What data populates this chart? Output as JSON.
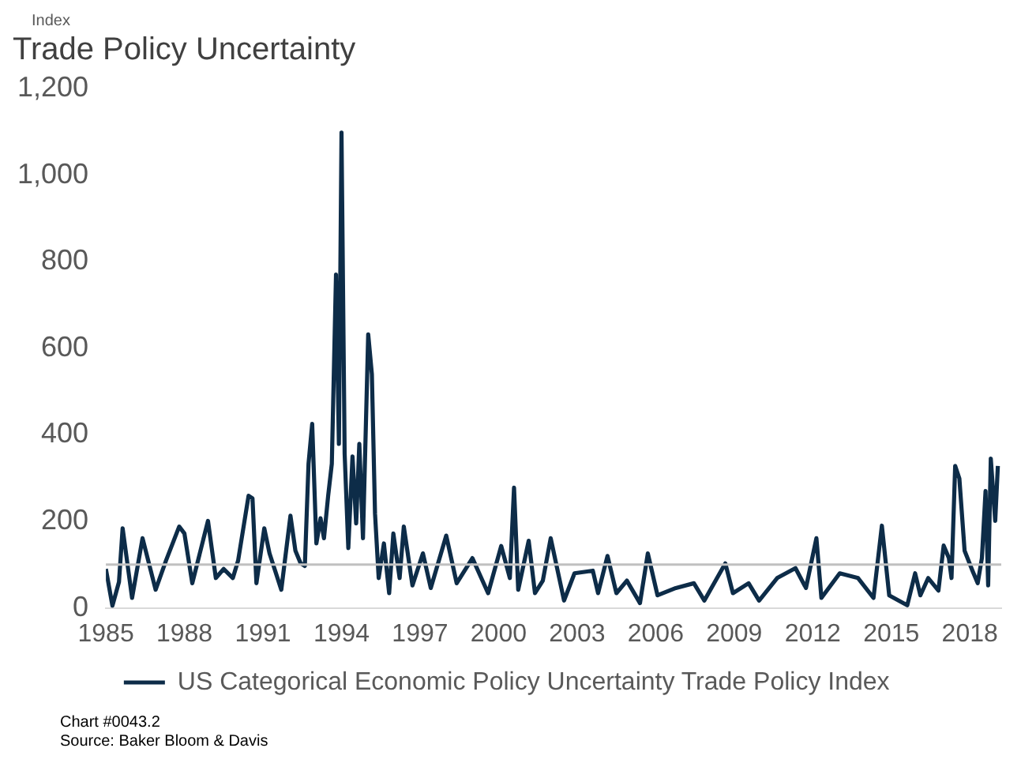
{
  "chart_data": {
    "type": "line",
    "title": "Trade Policy Uncertainty",
    "ylabel": "Index",
    "annotations": [
      "Chart #0043.2",
      "Source: Baker Bloom & Davis"
    ],
    "x": [
      1985.0,
      1985.25,
      1985.5,
      1985.64,
      1986.0,
      1986.4,
      1986.9,
      1987.3,
      1987.8,
      1988.0,
      1988.3,
      1988.9,
      1989.2,
      1989.5,
      1989.85,
      1990.05,
      1990.45,
      1990.6,
      1990.75,
      1991.05,
      1991.25,
      1991.7,
      1992.05,
      1992.24,
      1992.44,
      1992.6,
      1992.74,
      1992.88,
      1993.04,
      1993.2,
      1993.33,
      1993.49,
      1993.63,
      1993.79,
      1993.9,
      1994.0,
      1994.12,
      1994.26,
      1994.42,
      1994.56,
      1994.68,
      1994.82,
      1995.02,
      1995.16,
      1995.28,
      1995.42,
      1995.62,
      1995.82,
      1995.98,
      1996.22,
      1996.38,
      1996.71,
      1997.11,
      1997.41,
      1998.0,
      1998.4,
      1999.0,
      1999.6,
      2000.1,
      2000.43,
      2000.59,
      2000.75,
      2001.15,
      2001.39,
      2001.69,
      2001.99,
      2002.5,
      2002.9,
      2003.6,
      2003.8,
      2004.16,
      2004.5,
      2004.9,
      2005.4,
      2005.7,
      2006.07,
      2006.77,
      2007.46,
      2007.86,
      2008.66,
      2008.95,
      2009.55,
      2009.95,
      2010.64,
      2011.34,
      2011.74,
      2012.14,
      2012.33,
      2013.03,
      2013.73,
      2014.32,
      2014.64,
      2014.92,
      2015.61,
      2015.91,
      2016.11,
      2016.41,
      2016.8,
      2017.0,
      2017.2,
      2017.3,
      2017.44,
      2017.6,
      2017.8,
      2018.1,
      2018.3,
      2018.46,
      2018.6,
      2018.7,
      2018.8,
      2018.97,
      2019.07
    ],
    "series": [
      {
        "name": "US Categorical Economic Policy Uncertainty Trade Policy Index",
        "color": "#0d2c48",
        "values": [
          90,
          5,
          60,
          184,
          23,
          161,
          42,
          110,
          188,
          172,
          57,
          201,
          69,
          90,
          69,
          109,
          259,
          253,
          57,
          184,
          126,
          42,
          213,
          132,
          103,
          97,
          333,
          425,
          149,
          207,
          161,
          259,
          333,
          770,
          379,
          1098,
          356,
          138,
          350,
          195,
          379,
          161,
          632,
          540,
          218,
          69,
          149,
          34,
          172,
          69,
          188,
          52,
          126,
          46,
          167,
          57,
          115,
          34,
          143,
          69,
          278,
          42,
          155,
          34,
          63,
          161,
          17,
          80,
          86,
          34,
          120,
          34,
          63,
          11,
          126,
          29,
          46,
          57,
          17,
          103,
          34,
          57,
          17,
          69,
          92,
          46,
          161,
          23,
          80,
          69,
          23,
          190,
          29,
          6,
          80,
          29,
          69,
          40,
          144,
          115,
          69,
          328,
          299,
          132,
          86,
          57,
          115,
          270,
          52,
          345,
          201,
          328
        ]
      }
    ],
    "xlim": [
      1985,
      2019.2
    ],
    "xticks": [
      1985,
      1988,
      1991,
      1994,
      1997,
      2000,
      2003,
      2006,
      2009,
      2012,
      2015,
      2018
    ],
    "ylim": [
      0,
      1200
    ],
    "yticks": [
      0,
      200,
      400,
      600,
      800,
      {
        "value": 1000,
        "label": "1,000"
      },
      {
        "value": 1200,
        "label": "1,200"
      }
    ],
    "ref_lines": [
      {
        "axis": "y",
        "value": 100,
        "color": "#c0c0c0"
      }
    ],
    "grid": false,
    "legend": "bottom",
    "marker": "none",
    "line_style": "solid"
  }
}
